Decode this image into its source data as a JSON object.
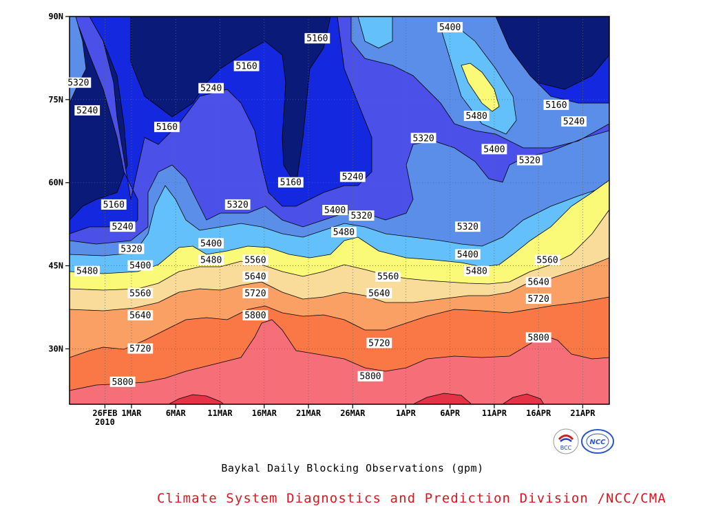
{
  "chart_data": {
    "type": "heatmap",
    "subtype": "time-latitude filled contour",
    "title": "Baykal Daily Blocking Observations (gpm)",
    "credit": "Climate System Diagnostics and Prediction Division /NCC/CMA",
    "x_ticks": [
      "26FEB",
      "1MAR",
      "6MAR",
      "11MAR",
      "16MAR",
      "21MAR",
      "26MAR",
      "1APR",
      "6APR",
      "11APR",
      "16APR",
      "21APR"
    ],
    "x_year_label": "2010",
    "y_ticks": [
      "30N",
      "45N",
      "60N",
      "75N",
      "90N"
    ],
    "y_values": [
      30,
      45,
      60,
      75,
      90
    ],
    "ylim": [
      20,
      90
    ],
    "grid": "dotted",
    "contour_levels": [
      5160,
      5240,
      5320,
      5400,
      5480,
      5560,
      5640,
      5720,
      5800,
      5880
    ],
    "contour_labels": [
      {
        "text": "5160",
        "time": "27FEB",
        "lat": 56
      },
      {
        "text": "5160",
        "time": "5MAR",
        "lat": 70
      },
      {
        "text": "5160",
        "time": "14MAR",
        "lat": 81
      },
      {
        "text": "5160",
        "time": "22MAR",
        "lat": 86
      },
      {
        "text": "5160",
        "time": "19MAR",
        "lat": 60
      },
      {
        "text": "5160",
        "time": "18APR",
        "lat": 74
      },
      {
        "text": "5240",
        "time": "24FEB",
        "lat": 73
      },
      {
        "text": "5240",
        "time": "10MAR",
        "lat": 77
      },
      {
        "text": "5240",
        "time": "28FEB",
        "lat": 52
      },
      {
        "text": "5240",
        "time": "26MAR",
        "lat": 61
      },
      {
        "text": "5240",
        "time": "20APR",
        "lat": 71
      },
      {
        "text": "5320",
        "time": "23FEB",
        "lat": 78
      },
      {
        "text": "5320",
        "time": "13MAR",
        "lat": 56
      },
      {
        "text": "5320",
        "time": "1MAR",
        "lat": 48
      },
      {
        "text": "5320",
        "time": "27MAR",
        "lat": 54
      },
      {
        "text": "5320",
        "time": "3APR",
        "lat": 68
      },
      {
        "text": "5320",
        "time": "8APR",
        "lat": 52
      },
      {
        "text": "5320",
        "time": "15APR",
        "lat": 64
      },
      {
        "text": "5400",
        "time": "10MAR",
        "lat": 49
      },
      {
        "text": "5400",
        "time": "2MAR",
        "lat": 45
      },
      {
        "text": "5400",
        "time": "24MAR",
        "lat": 55
      },
      {
        "text": "5400",
        "time": "6APR",
        "lat": 88
      },
      {
        "text": "5400",
        "time": "11APR",
        "lat": 66
      },
      {
        "text": "5400",
        "time": "8APR",
        "lat": 47
      },
      {
        "text": "5480",
        "time": "24FEB",
        "lat": 44
      },
      {
        "text": "5480",
        "time": "10MAR",
        "lat": 46
      },
      {
        "text": "5480",
        "time": "25MAR",
        "lat": 51
      },
      {
        "text": "5480",
        "time": "9APR",
        "lat": 72
      },
      {
        "text": "5480",
        "time": "9APR",
        "lat": 44
      },
      {
        "text": "5560",
        "time": "15MAR",
        "lat": 46
      },
      {
        "text": "5560",
        "time": "2MAR",
        "lat": 40
      },
      {
        "text": "5560",
        "time": "30MAR",
        "lat": 43
      },
      {
        "text": "5560",
        "time": "17APR",
        "lat": 46
      },
      {
        "text": "5640",
        "time": "15MAR",
        "lat": 43
      },
      {
        "text": "5640",
        "time": "2MAR",
        "lat": 36
      },
      {
        "text": "5640",
        "time": "29MAR",
        "lat": 40
      },
      {
        "text": "5640",
        "time": "16APR",
        "lat": 42
      },
      {
        "text": "5720",
        "time": "15MAR",
        "lat": 40
      },
      {
        "text": "5720",
        "time": "2MAR",
        "lat": 30
      },
      {
        "text": "5720",
        "time": "29MAR",
        "lat": 31
      },
      {
        "text": "5720",
        "time": "16APR",
        "lat": 39
      },
      {
        "text": "5800",
        "time": "15MAR",
        "lat": 36
      },
      {
        "text": "5800",
        "time": "28FEB",
        "lat": 24
      },
      {
        "text": "5800",
        "time": "28MAR",
        "lat": 25
      },
      {
        "text": "5800",
        "time": "16APR",
        "lat": 32
      }
    ],
    "colorbar": {
      "5160": "#0a1a78",
      "5240": "#1428e0",
      "5320": "#4a50e8",
      "5400": "#5a8ee8",
      "5480": "#64c0fa",
      "5560": "#fafa78",
      "5640": "#fadc9a",
      "5720": "#faa064",
      "5800": "#fa7846",
      "5880": "#f56e78",
      "above": "#e63246"
    }
  },
  "logos": {
    "bcc": "BCC",
    "ncc": "NCC"
  }
}
